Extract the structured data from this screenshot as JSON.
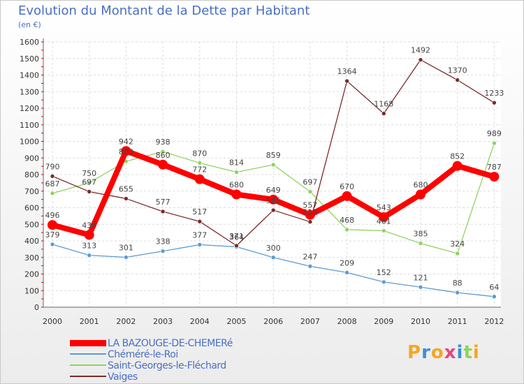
{
  "chart_data": {
    "type": "line",
    "title": "Evolution du Montant de la Dette par Habitant",
    "subtitle": "(en €)",
    "x": [
      "2000",
      "2001",
      "2002",
      "2003",
      "2004",
      "2005",
      "2006",
      "2007",
      "2008",
      "2009",
      "2010",
      "2011",
      "2012"
    ],
    "ylim": [
      0,
      1600
    ],
    "yticks": [
      0,
      100,
      200,
      300,
      400,
      500,
      600,
      700,
      800,
      900,
      1000,
      1100,
      1200,
      1300,
      1400,
      1500,
      1600
    ],
    "grid": true,
    "legend_placement": "bottom-left",
    "series": [
      {
        "name": "LA BAZOUGE-DE-CHEMERé",
        "color": "#ff0000",
        "values": [
          496,
          436,
          942,
          860,
          772,
          680,
          649,
          557,
          670,
          543,
          680,
          852,
          787
        ]
      },
      {
        "name": "Chéméré-le-Roi",
        "color": "#5b9bd5",
        "values": [
          379,
          313,
          301,
          338,
          377,
          364,
          300,
          247,
          209,
          152,
          121,
          88,
          64
        ]
      },
      {
        "name": "Saint-Georges-le-Fléchard",
        "color": "#8fd35f",
        "values": [
          687,
          750,
          880,
          938,
          870,
          814,
          859,
          697,
          468,
          461,
          385,
          324,
          989
        ]
      },
      {
        "name": "Vaiges",
        "color": "#7b2a2a",
        "values": [
          790,
          697,
          655,
          577,
          517,
          371,
          585,
          515,
          1364,
          1168,
          1492,
          1370,
          1233
        ]
      }
    ]
  },
  "logo": {
    "letters": [
      "P",
      "r",
      "o",
      "x",
      "i",
      "t",
      "i"
    ],
    "colors": [
      "#f5a623",
      "#3a8fd8",
      "#f5a623",
      "#e8457a",
      "#3a8fd8",
      "#8fd35f",
      "#f5a623"
    ]
  }
}
